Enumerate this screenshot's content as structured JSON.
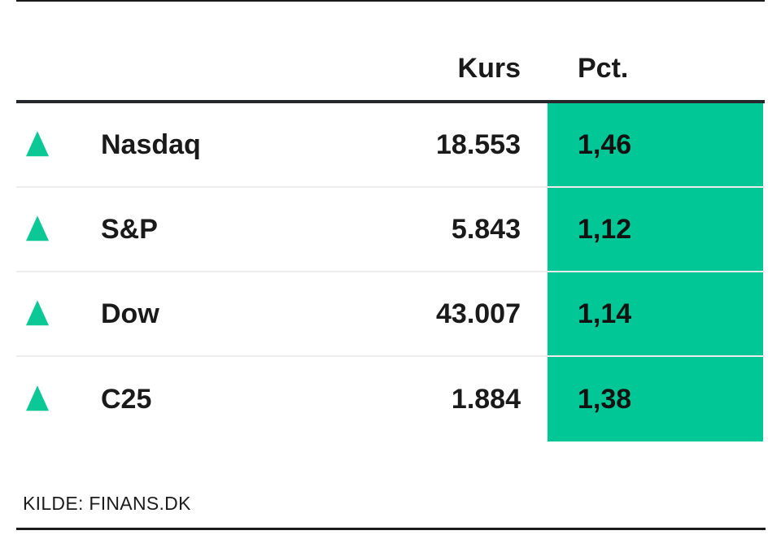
{
  "header": {
    "kurs_label": "Kurs",
    "pct_label": "Pct."
  },
  "rows": [
    {
      "name": "Nasdaq",
      "kurs": "18.553",
      "pct": "1,46",
      "direction": "up"
    },
    {
      "name": "S&P",
      "kurs": "5.843",
      "pct": "1,12",
      "direction": "up"
    },
    {
      "name": "Dow",
      "kurs": "43.007",
      "pct": "1,14",
      "direction": "up"
    },
    {
      "name": "C25",
      "kurs": "1.884",
      "pct": "1,38",
      "direction": "up"
    }
  ],
  "footer": {
    "source": "KILDE: FINANS.DK"
  },
  "colors": {
    "accent_green_block": "#00c795",
    "triangle_green": "#0cc796",
    "text_dark": "#1a1a1a",
    "header_rule": "#24282b",
    "row_separator": "#ececec",
    "background": "#ffffff"
  },
  "chart_data": {
    "type": "table",
    "title": "",
    "columns": [
      "index",
      "Kurs",
      "Pct."
    ],
    "rows": [
      [
        "Nasdaq",
        18553,
        1.46
      ],
      [
        "S&P",
        5843,
        1.12
      ],
      [
        "Dow",
        43007,
        1.14
      ],
      [
        "C25",
        1884,
        1.38
      ]
    ],
    "notes": "All four indices up (green triangles); Pct. column has green background; Danish number formatting; source finans.dk"
  }
}
